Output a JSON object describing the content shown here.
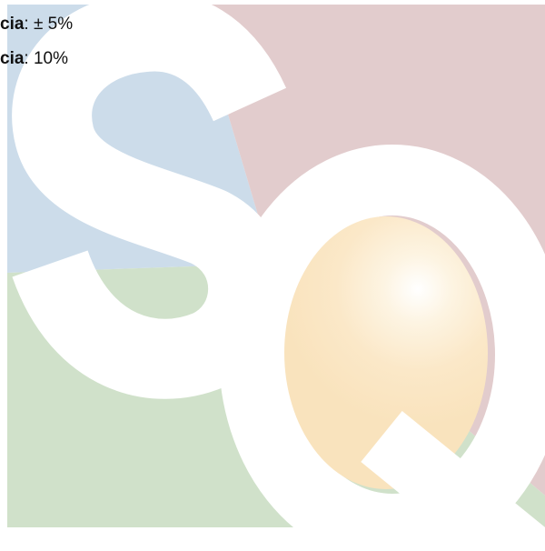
{
  "lines": [
    {
      "label": "cia",
      "text": ": ± 5%"
    },
    {
      "label": "cia",
      "text": ": 10%"
    }
  ]
}
